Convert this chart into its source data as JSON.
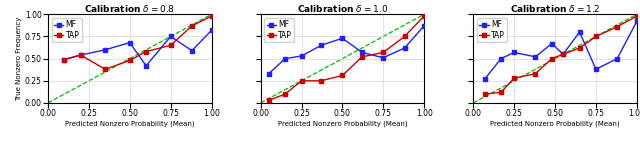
{
  "panels": [
    {
      "title": "Calibration $\\delta = 0.8$",
      "mf_x": [
        0.1,
        0.2,
        0.35,
        0.5,
        0.6,
        0.75,
        0.88,
        1.0
      ],
      "mf_y": [
        0.49,
        0.54,
        0.6,
        0.68,
        0.42,
        0.75,
        0.59,
        0.82
      ],
      "tap_x": [
        0.1,
        0.2,
        0.35,
        0.5,
        0.6,
        0.75,
        0.88,
        1.0
      ],
      "tap_y": [
        0.49,
        0.54,
        0.38,
        0.48,
        0.58,
        0.65,
        0.87,
        0.98
      ]
    },
    {
      "title": "Calibration $\\delta = 1.0$",
      "mf_x": [
        0.05,
        0.15,
        0.25,
        0.37,
        0.5,
        0.62,
        0.75,
        0.88,
        1.0
      ],
      "mf_y": [
        0.33,
        0.5,
        0.53,
        0.65,
        0.73,
        0.57,
        0.51,
        0.62,
        0.87
      ],
      "tap_x": [
        0.05,
        0.15,
        0.25,
        0.37,
        0.5,
        0.62,
        0.75,
        0.88,
        1.0
      ],
      "tap_y": [
        0.03,
        0.1,
        0.25,
        0.25,
        0.31,
        0.52,
        0.57,
        0.75,
        0.98
      ]
    },
    {
      "title": "Calibration $\\delta = 1.2$",
      "mf_x": [
        0.07,
        0.17,
        0.25,
        0.38,
        0.48,
        0.55,
        0.65,
        0.75,
        0.88,
        1.0
      ],
      "mf_y": [
        0.27,
        0.5,
        0.57,
        0.52,
        0.67,
        0.55,
        0.8,
        0.38,
        0.5,
        0.92
      ],
      "tap_x": [
        0.07,
        0.17,
        0.25,
        0.38,
        0.48,
        0.55,
        0.65,
        0.75,
        0.88,
        1.0
      ],
      "tap_y": [
        0.1,
        0.12,
        0.28,
        0.33,
        0.5,
        0.55,
        0.62,
        0.75,
        0.86,
        0.98
      ]
    }
  ],
  "mf_color": "#1f1fff",
  "tap_color": "#cc0000",
  "diag_color": "#00bb00",
  "xlabel": "Predicted Nonzero Probability (Mean)",
  "ylabel": "True Nonzero Frequency",
  "xlim": [
    0.0,
    1.0
  ],
  "ylim": [
    0.0,
    1.0
  ],
  "xticks": [
    0.0,
    0.25,
    0.5,
    0.75,
    1.0
  ],
  "yticks": [
    0.0,
    0.25,
    0.5,
    0.75,
    1.0
  ]
}
